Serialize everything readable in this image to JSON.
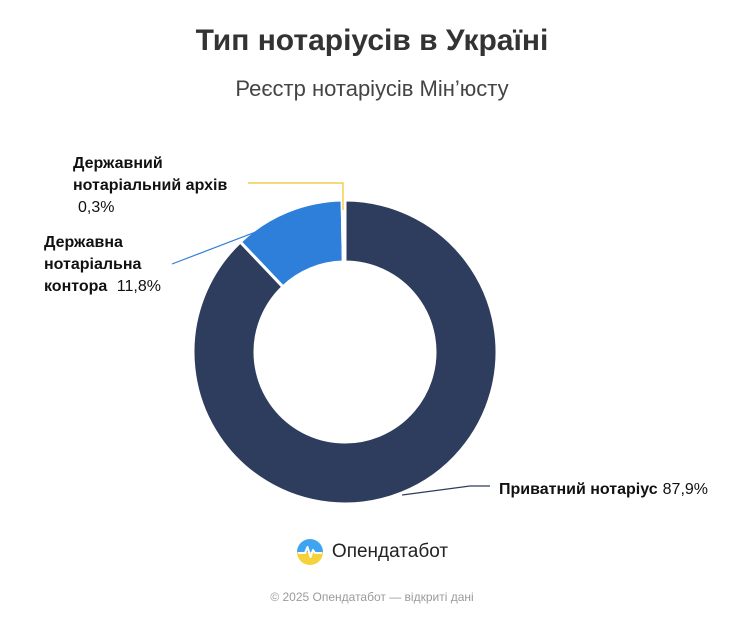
{
  "chart_data": {
    "type": "pie",
    "variant": "donut",
    "title": "Тип нотаріусів в Україні",
    "subtitle": "Реєстр нотаріусів Мін’юсту",
    "slices": [
      {
        "label_lines": [
          "Приватний нотаріус"
        ],
        "value_text": "87,9%",
        "value": 87.9,
        "color": "#2e3d5e",
        "leader_color": "#2e3d5e"
      },
      {
        "label_lines": [
          "Державна",
          "нотаріальна",
          "контора"
        ],
        "value_text": "11,8%",
        "value": 11.8,
        "color": "#2e7fd9",
        "leader_color": "#2e7fd9"
      },
      {
        "label_lines": [
          "Державний",
          "нотаріальний архів"
        ],
        "value_text": "0,3%",
        "value": 0.3,
        "color": "#f2c12e",
        "leader_color": "#f2c12e"
      }
    ]
  },
  "brand": {
    "name": "Опендатабот",
    "logo_icon": "opendatabot-logo-icon"
  },
  "footer": {
    "text": "© 2025 Опендатабот — відкриті дані"
  }
}
